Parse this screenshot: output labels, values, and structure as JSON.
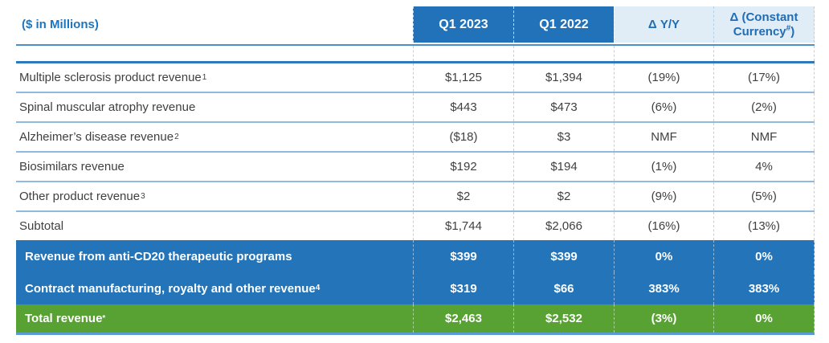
{
  "title": {
    "unit_label": "($ in Millions)"
  },
  "header": {
    "q1_2023": "Q1 2023",
    "q1_2022": "Q1 2022",
    "delta_yy": "Δ Y/Y",
    "delta_cc_line1": "Δ (Constant",
    "delta_cc_line2": "Currency",
    "delta_cc_sup": "#",
    "delta_cc_close": ")"
  },
  "rows": [
    {
      "label": "Multiple sclerosis product revenue",
      "sup": "1",
      "q1_2023": "$1,125",
      "q1_2022": "$1,394",
      "delta_yy": "(19%)",
      "delta_cc": "(17%)"
    },
    {
      "label": "Spinal muscular atrophy revenue",
      "sup": "",
      "q1_2023": "$443",
      "q1_2022": "$473",
      "delta_yy": "(6%)",
      "delta_cc": "(2%)"
    },
    {
      "label": "Alzheimer’s disease revenue",
      "sup": "2",
      "q1_2023": "($18)",
      "q1_2022": "$3",
      "delta_yy": "NMF",
      "delta_cc": "NMF"
    },
    {
      "label": "Biosimilars revenue",
      "sup": "",
      "q1_2023": "$192",
      "q1_2022": "$194",
      "delta_yy": "(1%)",
      "delta_cc": "4%"
    },
    {
      "label": "Other product revenue",
      "sup": "3",
      "q1_2023": "$2",
      "q1_2022": "$2",
      "delta_yy": "(9%)",
      "delta_cc": "(5%)"
    },
    {
      "label": "Subtotal",
      "sup": "",
      "q1_2023": "$1,744",
      "q1_2022": "$2,066",
      "delta_yy": "(16%)",
      "delta_cc": "(13%)"
    },
    {
      "label": "Revenue from anti-CD20 therapeutic programs",
      "sup": "",
      "q1_2023": "$399",
      "q1_2022": "$399",
      "delta_yy": "0%",
      "delta_cc": "0%"
    },
    {
      "label": "Contract manufacturing, royalty and other revenue",
      "sup": "4",
      "q1_2023": "$319",
      "q1_2022": "$66",
      "delta_yy": "383%",
      "delta_cc": "383%"
    },
    {
      "label": "Total revenue",
      "sup": "*",
      "q1_2023": "$2,463",
      "q1_2022": "$2,532",
      "delta_yy": "(3%)",
      "delta_cc": "0%"
    }
  ],
  "colors": {
    "header_dark_blue": "#2272B9",
    "header_light_blue": "#E0EDF6",
    "header_text_blue": "#1F6DB5",
    "unit_label_blue": "#1F75BC",
    "highlight_blue": "#2374B9",
    "total_green": "#58A233",
    "separator_blue": "#8FBADF",
    "accent_line_blue": "#5B9BD5",
    "body_text": "#404040"
  }
}
